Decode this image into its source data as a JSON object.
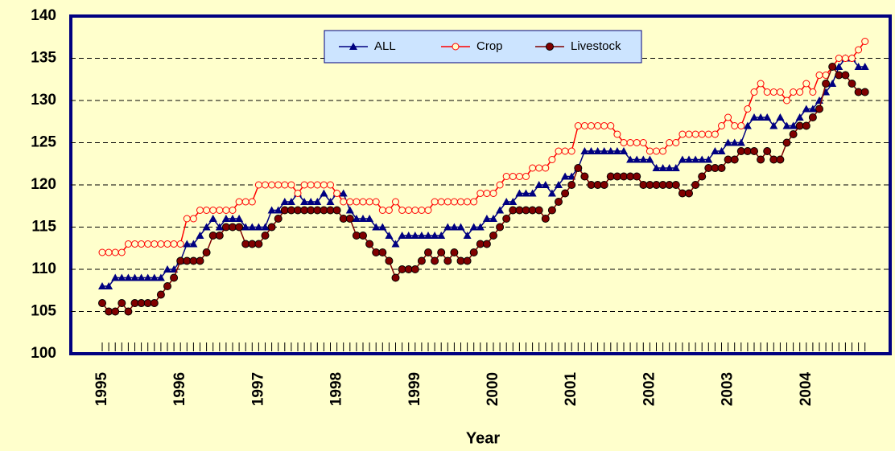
{
  "chart_data": {
    "type": "line",
    "x_label": "Year",
    "categories": [
      "1995",
      null,
      null,
      null,
      null,
      null,
      null,
      null,
      null,
      null,
      null,
      null,
      "1996",
      null,
      null,
      null,
      null,
      null,
      null,
      null,
      null,
      null,
      null,
      null,
      "1997",
      null,
      null,
      null,
      null,
      null,
      null,
      null,
      null,
      null,
      null,
      null,
      "1998",
      null,
      null,
      null,
      null,
      null,
      null,
      null,
      null,
      null,
      null,
      null,
      "1999",
      null,
      null,
      null,
      null,
      null,
      null,
      null,
      null,
      null,
      null,
      null,
      "2000",
      null,
      null,
      null,
      null,
      null,
      null,
      null,
      null,
      null,
      null,
      null,
      "2001",
      null,
      null,
      null,
      null,
      null,
      null,
      null,
      null,
      null,
      null,
      null,
      "2002",
      null,
      null,
      null,
      null,
      null,
      null,
      null,
      null,
      null,
      null,
      null,
      "2003",
      null,
      null,
      null,
      null,
      null,
      null,
      null,
      null,
      null,
      null,
      null,
      "2004",
      null,
      null,
      null,
      null,
      null,
      null,
      null,
      null,
      null
    ],
    "series": [
      {
        "name": "ALL",
        "color": "#000080",
        "marker": "triangle",
        "values": [
          108,
          108,
          109,
          109,
          109,
          109,
          109,
          109,
          109,
          109,
          110,
          110,
          111,
          113,
          113,
          114,
          115,
          116,
          115,
          116,
          116,
          116,
          115,
          115,
          115,
          115,
          117,
          117,
          118,
          118,
          119,
          118,
          118,
          118,
          119,
          118,
          119,
          119,
          117,
          116,
          116,
          116,
          115,
          115,
          114,
          113,
          114,
          114,
          114,
          114,
          114,
          114,
          114,
          115,
          115,
          115,
          114,
          115,
          115,
          116,
          116,
          117,
          118,
          118,
          119,
          119,
          119,
          120,
          120,
          119,
          120,
          121,
          121,
          122,
          124,
          124,
          124,
          124,
          124,
          124,
          124,
          123,
          123,
          123,
          123,
          122,
          122,
          122,
          122,
          123,
          123,
          123,
          123,
          123,
          124,
          124,
          125,
          125,
          125,
          127,
          128,
          128,
          128,
          127,
          128,
          127,
          127,
          128,
          129,
          129,
          130,
          131,
          132,
          134,
          135,
          135,
          134,
          134
        ]
      },
      {
        "name": "Crop",
        "color": "#ff0000",
        "marker": "open-circle",
        "values": [
          112,
          112,
          112,
          112,
          113,
          113,
          113,
          113,
          113,
          113,
          113,
          113,
          113,
          116,
          116,
          117,
          117,
          117,
          117,
          117,
          117,
          118,
          118,
          118,
          120,
          120,
          120,
          120,
          120,
          120,
          119,
          120,
          120,
          120,
          120,
          120,
          119,
          118,
          118,
          118,
          118,
          118,
          118,
          117,
          117,
          118,
          117,
          117,
          117,
          117,
          117,
          118,
          118,
          118,
          118,
          118,
          118,
          118,
          119,
          119,
          119,
          120,
          121,
          121,
          121,
          121,
          122,
          122,
          122,
          123,
          124,
          124,
          124,
          127,
          127,
          127,
          127,
          127,
          127,
          126,
          125,
          125,
          125,
          125,
          124,
          124,
          124,
          125,
          125,
          126,
          126,
          126,
          126,
          126,
          126,
          127,
          128,
          127,
          127,
          129,
          131,
          132,
          131,
          131,
          131,
          130,
          131,
          131,
          132,
          131,
          133,
          133,
          134,
          135,
          135,
          135,
          136,
          137
        ]
      },
      {
        "name": "Livestock",
        "color": "#800000",
        "marker": "circle",
        "values": [
          106,
          105,
          105,
          106,
          105,
          106,
          106,
          106,
          106,
          107,
          108,
          109,
          111,
          111,
          111,
          111,
          112,
          114,
          114,
          115,
          115,
          115,
          113,
          113,
          113,
          114,
          115,
          116,
          117,
          117,
          117,
          117,
          117,
          117,
          117,
          117,
          117,
          116,
          116,
          114,
          114,
          113,
          112,
          112,
          111,
          109,
          110,
          110,
          110,
          111,
          112,
          111,
          112,
          111,
          112,
          111,
          111,
          112,
          113,
          113,
          114,
          115,
          116,
          117,
          117,
          117,
          117,
          117,
          116,
          117,
          118,
          119,
          120,
          122,
          121,
          120,
          120,
          120,
          121,
          121,
          121,
          121,
          121,
          120,
          120,
          120,
          120,
          120,
          120,
          119,
          119,
          120,
          121,
          122,
          122,
          122,
          123,
          123,
          124,
          124,
          124,
          123,
          124,
          123,
          123,
          125,
          126,
          127,
          127,
          128,
          129,
          132,
          134,
          133,
          133,
          132,
          131,
          131
        ]
      }
    ],
    "ylim": [
      100,
      140
    ],
    "yticks": [
      100,
      105,
      110,
      115,
      120,
      125,
      130,
      135,
      140
    ],
    "grid": true,
    "legend": "top"
  }
}
